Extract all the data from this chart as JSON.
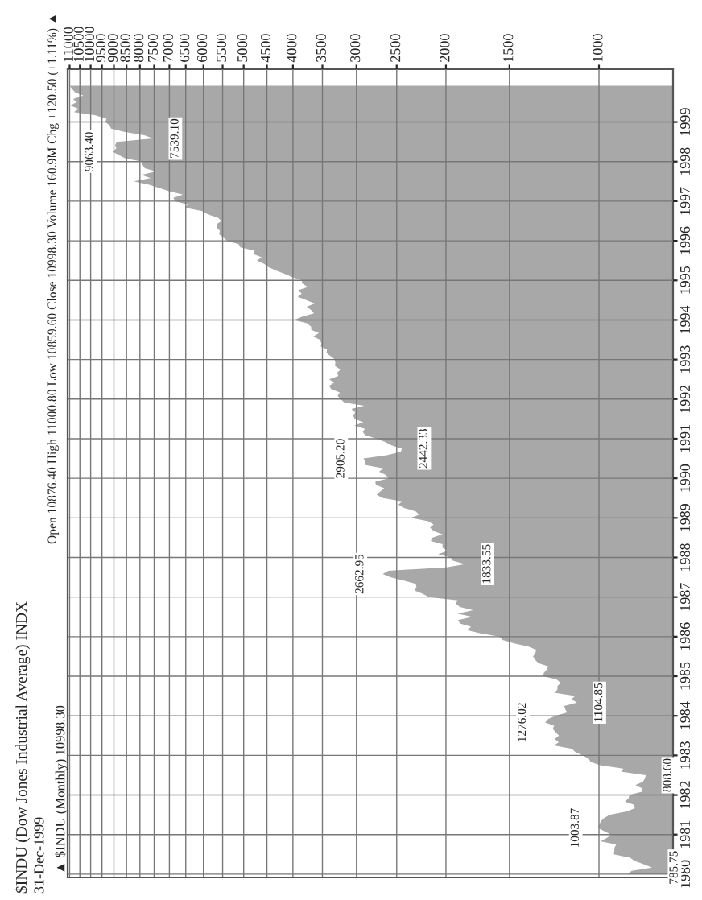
{
  "chart_data": {
    "type": "area",
    "orientation": "horizontal",
    "log": "x",
    "title": "$INDU (Dow Jones Industrial Average) INDX",
    "subtitle": "31-Dec-1999",
    "x": [
      "1980-01",
      "1980-02",
      "1980-03",
      "1980-04",
      "1980-05",
      "1980-06",
      "1980-07",
      "1980-08",
      "1980-09",
      "1980-10",
      "1980-11",
      "1980-12",
      "1981-01",
      "1981-02",
      "1981-03",
      "1981-04",
      "1981-05",
      "1981-06",
      "1981-07",
      "1981-08",
      "1981-09",
      "1981-10",
      "1981-11",
      "1981-12",
      "1982-01",
      "1982-02",
      "1982-03",
      "1982-04",
      "1982-05",
      "1982-06",
      "1982-07",
      "1982-08",
      "1982-09",
      "1982-10",
      "1982-11",
      "1982-12",
      "1983-01",
      "1983-02",
      "1983-03",
      "1983-04",
      "1983-05",
      "1983-06",
      "1983-07",
      "1983-08",
      "1983-09",
      "1983-10",
      "1983-11",
      "1983-12",
      "1984-01",
      "1984-02",
      "1984-03",
      "1984-04",
      "1984-05",
      "1984-06",
      "1984-07",
      "1984-08",
      "1984-09",
      "1984-10",
      "1984-11",
      "1984-12",
      "1985-01",
      "1985-02",
      "1985-03",
      "1985-04",
      "1985-05",
      "1985-06",
      "1985-07",
      "1985-08",
      "1985-09",
      "1985-10",
      "1985-11",
      "1985-12",
      "1986-01",
      "1986-02",
      "1986-03",
      "1986-04",
      "1986-05",
      "1986-06",
      "1986-07",
      "1986-08",
      "1986-09",
      "1986-10",
      "1986-11",
      "1986-12",
      "1987-01",
      "1987-02",
      "1987-03",
      "1987-04",
      "1987-05",
      "1987-06",
      "1987-07",
      "1987-08",
      "1987-09",
      "1987-10",
      "1987-11",
      "1987-12",
      "1988-01",
      "1988-02",
      "1988-03",
      "1988-04",
      "1988-05",
      "1988-06",
      "1988-07",
      "1988-08",
      "1988-09",
      "1988-10",
      "1988-11",
      "1988-12",
      "1989-01",
      "1989-02",
      "1989-03",
      "1989-04",
      "1989-05",
      "1989-06",
      "1989-07",
      "1989-08",
      "1989-09",
      "1989-10",
      "1989-11",
      "1989-12",
      "1990-01",
      "1990-02",
      "1990-03",
      "1990-04",
      "1990-05",
      "1990-06",
      "1990-07",
      "1990-08",
      "1990-09",
      "1990-10",
      "1990-11",
      "1990-12",
      "1991-01",
      "1991-02",
      "1991-03",
      "1991-04",
      "1991-05",
      "1991-06",
      "1991-07",
      "1991-08",
      "1991-09",
      "1991-10",
      "1991-11",
      "1991-12",
      "1992-01",
      "1992-02",
      "1992-03",
      "1992-04",
      "1992-05",
      "1992-06",
      "1992-07",
      "1992-08",
      "1992-09",
      "1992-10",
      "1992-11",
      "1992-12",
      "1993-01",
      "1993-02",
      "1993-03",
      "1993-04",
      "1993-05",
      "1993-06",
      "1993-07",
      "1993-08",
      "1993-09",
      "1993-10",
      "1993-11",
      "1993-12",
      "1994-01",
      "1994-02",
      "1994-03",
      "1994-04",
      "1994-05",
      "1994-06",
      "1994-07",
      "1994-08",
      "1994-09",
      "1994-10",
      "1994-11",
      "1994-12",
      "1995-01",
      "1995-02",
      "1995-03",
      "1995-04",
      "1995-05",
      "1995-06",
      "1995-07",
      "1995-08",
      "1995-09",
      "1995-10",
      "1995-11",
      "1995-12",
      "1996-01",
      "1996-02",
      "1996-03",
      "1996-04",
      "1996-05",
      "1996-06",
      "1996-07",
      "1996-08",
      "1996-09",
      "1996-10",
      "1996-11",
      "1996-12",
      "1997-01",
      "1997-02",
      "1997-03",
      "1997-04",
      "1997-05",
      "1997-06",
      "1997-07",
      "1997-08",
      "1997-09",
      "1997-10",
      "1997-11",
      "1997-12",
      "1998-01",
      "1998-02",
      "1998-03",
      "1998-04",
      "1998-05",
      "1998-06",
      "1998-07",
      "1998-08",
      "1998-09",
      "1998-10",
      "1998-11",
      "1998-12",
      "1999-01",
      "1999-02",
      "1999-03",
      "1999-04",
      "1999-05",
      "1999-06",
      "1999-07",
      "1999-08",
      "1999-09",
      "1999-10",
      "1999-11",
      "1999-12"
    ],
    "series": [
      {
        "color": "#a8a8a8",
        "values": [
          876,
          863,
          785.75,
          817,
          851,
          868,
          935,
          933,
          932,
          925,
          993,
          964,
          947,
          975,
          1003.87,
          998,
          992,
          977,
          953,
          882,
          850,
          853,
          889,
          875,
          871,
          824,
          823,
          848,
          820,
          812,
          808.6,
          901,
          896,
          992,
          1039,
          1047,
          1076,
          1113,
          1130,
          1226,
          1200,
          1222,
          1199,
          1216,
          1233,
          1225,
          1276.02,
          1259,
          1220,
          1155,
          1165,
          1171,
          1104.85,
          1132,
          1115,
          1224,
          1207,
          1207,
          1189,
          1212,
          1287,
          1284,
          1267,
          1258,
          1316,
          1336,
          1348,
          1334,
          1329,
          1375,
          1473,
          1547,
          1571,
          1710,
          1819,
          1784,
          1877,
          1893,
          1775,
          1898,
          1768,
          1878,
          1914,
          1896,
          2158,
          2224,
          2305,
          2286,
          2292,
          2419,
          2572,
          2662.95,
          2596,
          1994,
          1833.55,
          1939,
          1958,
          2072,
          1988,
          2032,
          2031,
          2142,
          2129,
          2032,
          2113,
          2149,
          2115,
          2169,
          2342,
          2258,
          2294,
          2419,
          2480,
          2440,
          2661,
          2737,
          2693,
          2645,
          2748,
          2753,
          2591,
          2627,
          2707,
          2657,
          2877,
          2881,
          2905.2,
          2614,
          2453,
          2442.33,
          2560,
          2634,
          2736,
          2882,
          2914,
          2888,
          3028,
          2907,
          3025,
          3044,
          3017,
          3069,
          2895,
          3169,
          3224,
          3267,
          3236,
          3359,
          3397,
          3319,
          3394,
          3257,
          3272,
          3226,
          3305,
          3301,
          3310,
          3371,
          3436,
          3428,
          3527,
          3516,
          3540,
          3651,
          3555,
          3681,
          3684,
          3754,
          3978,
          3832,
          3636,
          3682,
          3758,
          3625,
          3765,
          3913,
          3843,
          3908,
          3739,
          3834,
          3844,
          4011,
          4158,
          4321,
          4465,
          4556,
          4709,
          4611,
          4789,
          4756,
          5075,
          5117,
          5395,
          5486,
          5588,
          5569,
          5643,
          5655,
          5529,
          5616,
          5882,
          6029,
          6522,
          6448,
          6813,
          6878,
          6584,
          7009,
          7331,
          7673,
          8223,
          7622,
          7945,
          7442,
          7823,
          7908,
          7907,
          8546,
          8800,
          9063.4,
          8900,
          8952,
          8883,
          7539.1,
          7843,
          8592,
          9117,
          9181,
          9359,
          9307,
          9786,
          10789,
          10560,
          10971,
          10655,
          10829,
          10337,
          10730,
          10878,
          10998.3
        ]
      }
    ],
    "xlim": [
      11100,
      715
    ],
    "xticks": [
      1000,
      1500,
      2000,
      2500,
      3000,
      3500,
      4000,
      4500,
      5000,
      5500,
      6000,
      6500,
      7000,
      7500,
      8000,
      8500,
      9000,
      9500,
      10000,
      10500,
      11000
    ],
    "ylim": [
      "1979-12",
      "2000-05"
    ],
    "yticks": [
      {
        "value": "1980-01",
        "label": "1980"
      },
      {
        "value": "1981-01",
        "label": "1981"
      },
      {
        "value": "1982-01",
        "label": "1982"
      },
      {
        "value": "1983-01",
        "label": "1983"
      },
      {
        "value": "1984-01",
        "label": "1984"
      },
      {
        "value": "1985-01",
        "label": "1985"
      },
      {
        "value": "1986-01",
        "label": "1986"
      },
      {
        "value": "1987-01",
        "label": "1987"
      },
      {
        "value": "1988-01",
        "label": "1988"
      },
      {
        "value": "1989-01",
        "label": "1989"
      },
      {
        "value": "1990-01",
        "label": "1990"
      },
      {
        "value": "1991-01",
        "label": "1991"
      },
      {
        "value": "1992-01",
        "label": "1992"
      },
      {
        "value": "1993-01",
        "label": "1993"
      },
      {
        "value": "1994-01",
        "label": "1994"
      },
      {
        "value": "1995-01",
        "label": "1995"
      },
      {
        "value": "1996-01",
        "label": "1996"
      },
      {
        "value": "1997-01",
        "label": "1997"
      },
      {
        "value": "1998-01",
        "label": "1998"
      },
      {
        "value": "1999-01",
        "label": "1999"
      }
    ],
    "grid": true,
    "annotations": [
      "Open 10876.40 High 11000.80 Low 10859.60 Close 10998.30 Volume 160.9M Chg +120.50 (+1.11%) ▲",
      "▲ $INDU (Monthly) 10998.30",
      {
        "text": "785.75",
        "y": "1980-03",
        "x": 785.75
      },
      {
        "text": "1003.87",
        "y": "1981-03",
        "x": 1003.87
      },
      {
        "text": "808.60",
        "y": "1982-07",
        "x": 808.6
      },
      {
        "text": "1276.02",
        "y": "1983-11",
        "x": 1276.02
      },
      {
        "text": "1104.85",
        "y": "1984-05",
        "x": 1104.85
      },
      {
        "text": "2662.95",
        "y": "1987-08",
        "x": 2662.95
      },
      {
        "text": "1833.55",
        "y": "1987-11",
        "x": 1833.55
      },
      {
        "text": "2905.20",
        "y": "1990-07",
        "x": 2905.2
      },
      {
        "text": "2442.33",
        "y": "1990-10",
        "x": 2442.33
      },
      {
        "text": "9063.40",
        "y": "1998-04",
        "x": 9063.4
      },
      {
        "text": "7539.10",
        "y": "1998-08",
        "x": 7539.1
      }
    ]
  }
}
